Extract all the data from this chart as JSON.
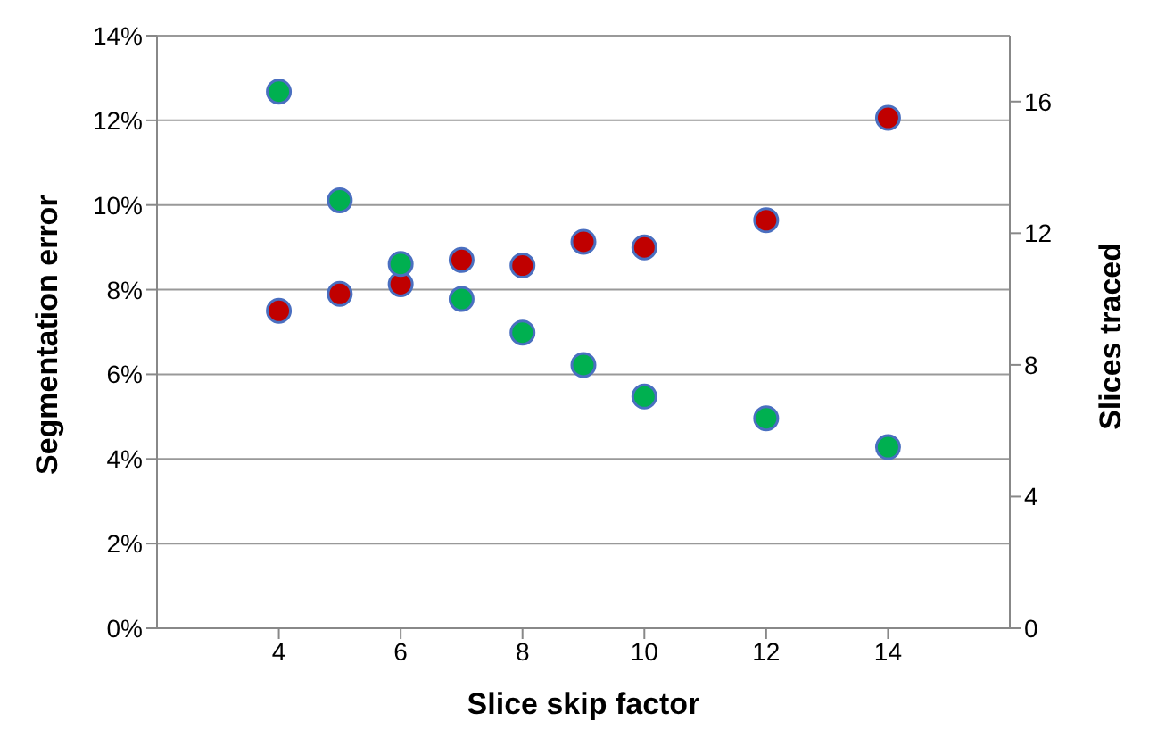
{
  "chart_data": {
    "type": "scatter",
    "xlabel": "Slice skip factor",
    "ylabel": "Segmentation error",
    "y2label": "Slices traced",
    "x": [
      4,
      5,
      6,
      7,
      8,
      9,
      10,
      12,
      14
    ],
    "series": [
      {
        "color": "#c00000",
        "values": [
          7.5,
          7.9,
          8.13,
          8.7,
          8.57,
          9.13,
          9.0,
          9.64,
          12.06
        ]
      },
      {
        "color": "#00b050",
        "axis": "y2",
        "values": [
          16.3,
          13.0,
          11.07,
          10.0,
          8.98,
          8.0,
          7.04,
          6.38,
          5.5
        ]
      }
    ],
    "xlim": [
      2,
      16
    ],
    "xticks": [
      4,
      6,
      8,
      10,
      12,
      14
    ],
    "ylim": [
      0,
      14
    ],
    "yticks": [
      {
        "value": 0,
        "label": "0%"
      },
      {
        "value": 2,
        "label": "2%"
      },
      {
        "value": 4,
        "label": "4%"
      },
      {
        "value": 6,
        "label": "6%"
      },
      {
        "value": 8,
        "label": "8%"
      },
      {
        "value": 10,
        "label": "10%"
      },
      {
        "value": 12,
        "label": "12%"
      },
      {
        "value": 14,
        "label": "14%"
      }
    ],
    "y2lim": [
      0,
      18
    ],
    "y2ticks": [
      0,
      4,
      8,
      12,
      16
    ],
    "grid": "y",
    "marker": "circle",
    "legend": false
  }
}
